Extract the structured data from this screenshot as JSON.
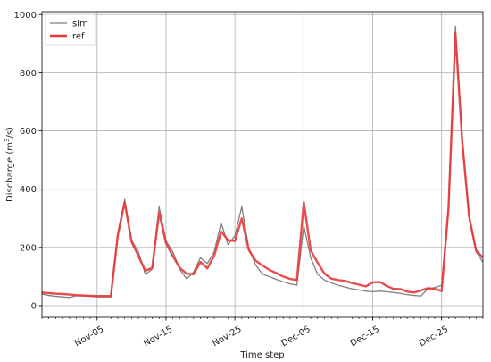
{
  "chart_data": {
    "type": "line",
    "xlabel": "Time step",
    "ylabel": "Discharge (m³/s)",
    "ylabel_main": "Discharge (m",
    "ylabel_sup": "3",
    "ylabel_end": "/s)",
    "ylim": [
      -40,
      1010
    ],
    "xlim": [
      "2023-10-28",
      "2023-12-31"
    ],
    "yticks": [
      0,
      200,
      400,
      600,
      800,
      1000
    ],
    "xticks": [
      "2023-11-05",
      "2023-11-15",
      "2023-11-25",
      "2023-12-05",
      "2023-12-15",
      "2023-12-25"
    ],
    "xtick_labels": [
      "Nov-05",
      "Nov-15",
      "Nov-25",
      "Dec-05",
      "Dec-15",
      "Dec-25"
    ],
    "grid": true,
    "legend_position": "top-left",
    "series": [
      {
        "name": "sim",
        "color": "#808080",
        "points": [
          [
            "2023-10-28",
            40
          ],
          [
            "2023-10-29",
            35
          ],
          [
            "2023-10-30",
            32
          ],
          [
            "2023-10-31",
            30
          ],
          [
            "2023-11-01",
            28
          ],
          [
            "2023-11-02",
            34
          ],
          [
            "2023-11-03",
            33
          ],
          [
            "2023-11-04",
            32
          ],
          [
            "2023-11-05",
            30
          ],
          [
            "2023-11-06",
            30
          ],
          [
            "2023-11-07",
            30
          ],
          [
            "2023-11-08",
            250
          ],
          [
            "2023-11-09",
            365
          ],
          [
            "2023-11-10",
            225
          ],
          [
            "2023-11-11",
            185
          ],
          [
            "2023-11-12",
            108
          ],
          [
            "2023-11-13",
            125
          ],
          [
            "2023-11-14",
            340
          ],
          [
            "2023-11-15",
            222
          ],
          [
            "2023-11-16",
            185
          ],
          [
            "2023-11-17",
            125
          ],
          [
            "2023-11-18",
            92
          ],
          [
            "2023-11-19",
            115
          ],
          [
            "2023-11-20",
            165
          ],
          [
            "2023-11-21",
            145
          ],
          [
            "2023-11-22",
            185
          ],
          [
            "2023-11-23",
            285
          ],
          [
            "2023-11-24",
            210
          ],
          [
            "2023-11-25",
            240
          ],
          [
            "2023-11-26",
            340
          ],
          [
            "2023-11-27",
            200
          ],
          [
            "2023-11-28",
            140
          ],
          [
            "2023-11-29",
            108
          ],
          [
            "2023-11-30",
            100
          ],
          [
            "2023-12-01",
            90
          ],
          [
            "2023-12-02",
            82
          ],
          [
            "2023-12-03",
            75
          ],
          [
            "2023-12-04",
            70
          ],
          [
            "2023-12-05",
            275
          ],
          [
            "2023-12-06",
            165
          ],
          [
            "2023-12-07",
            108
          ],
          [
            "2023-12-08",
            88
          ],
          [
            "2023-12-09",
            78
          ],
          [
            "2023-12-10",
            70
          ],
          [
            "2023-12-11",
            64
          ],
          [
            "2023-12-12",
            58
          ],
          [
            "2023-12-13",
            54
          ],
          [
            "2023-12-14",
            50
          ],
          [
            "2023-12-15",
            48
          ],
          [
            "2023-12-16",
            50
          ],
          [
            "2023-12-17",
            48
          ],
          [
            "2023-12-18",
            45
          ],
          [
            "2023-12-19",
            42
          ],
          [
            "2023-12-20",
            38
          ],
          [
            "2023-12-21",
            35
          ],
          [
            "2023-12-22",
            33
          ],
          [
            "2023-12-23",
            58
          ],
          [
            "2023-12-24",
            62
          ],
          [
            "2023-12-25",
            70
          ],
          [
            "2023-12-26",
            340
          ],
          [
            "2023-12-27",
            960
          ],
          [
            "2023-12-28",
            580
          ],
          [
            "2023-12-29",
            300
          ],
          [
            "2023-12-30",
            185
          ],
          [
            "2023-12-31",
            150
          ]
        ]
      },
      {
        "name": "ref",
        "color": "#e8393a",
        "points": [
          [
            "2023-10-28",
            45
          ],
          [
            "2023-10-29",
            43
          ],
          [
            "2023-10-30",
            41
          ],
          [
            "2023-10-31",
            40
          ],
          [
            "2023-11-01",
            38
          ],
          [
            "2023-11-02",
            36
          ],
          [
            "2023-11-03",
            35
          ],
          [
            "2023-11-04",
            34
          ],
          [
            "2023-11-05",
            33
          ],
          [
            "2023-11-06",
            33
          ],
          [
            "2023-11-07",
            33
          ],
          [
            "2023-11-08",
            240
          ],
          [
            "2023-11-09",
            355
          ],
          [
            "2023-11-10",
            220
          ],
          [
            "2023-11-11",
            170
          ],
          [
            "2023-11-12",
            120
          ],
          [
            "2023-11-13",
            130
          ],
          [
            "2023-11-14",
            320
          ],
          [
            "2023-11-15",
            215
          ],
          [
            "2023-11-16",
            170
          ],
          [
            "2023-11-17",
            130
          ],
          [
            "2023-11-18",
            110
          ],
          [
            "2023-11-19",
            108
          ],
          [
            "2023-11-20",
            150
          ],
          [
            "2023-11-21",
            128
          ],
          [
            "2023-11-22",
            172
          ],
          [
            "2023-11-23",
            255
          ],
          [
            "2023-11-24",
            225
          ],
          [
            "2023-11-25",
            222
          ],
          [
            "2023-11-26",
            300
          ],
          [
            "2023-11-27",
            192
          ],
          [
            "2023-11-28",
            155
          ],
          [
            "2023-11-29",
            138
          ],
          [
            "2023-11-30",
            123
          ],
          [
            "2023-12-01",
            112
          ],
          [
            "2023-12-02",
            100
          ],
          [
            "2023-12-03",
            92
          ],
          [
            "2023-12-04",
            88
          ],
          [
            "2023-12-05",
            355
          ],
          [
            "2023-12-06",
            190
          ],
          [
            "2023-12-07",
            148
          ],
          [
            "2023-12-08",
            110
          ],
          [
            "2023-12-09",
            93
          ],
          [
            "2023-12-10",
            88
          ],
          [
            "2023-12-11",
            85
          ],
          [
            "2023-12-12",
            78
          ],
          [
            "2023-12-13",
            72
          ],
          [
            "2023-12-14",
            66
          ],
          [
            "2023-12-15",
            80
          ],
          [
            "2023-12-16",
            82
          ],
          [
            "2023-12-17",
            68
          ],
          [
            "2023-12-18",
            58
          ],
          [
            "2023-12-19",
            57
          ],
          [
            "2023-12-20",
            48
          ],
          [
            "2023-12-21",
            45
          ],
          [
            "2023-12-22",
            52
          ],
          [
            "2023-12-23",
            60
          ],
          [
            "2023-12-24",
            58
          ],
          [
            "2023-12-25",
            50
          ],
          [
            "2023-12-26",
            335
          ],
          [
            "2023-12-27",
            935
          ],
          [
            "2023-12-28",
            560
          ],
          [
            "2023-12-29",
            305
          ],
          [
            "2023-12-30",
            190
          ],
          [
            "2023-12-31",
            165
          ]
        ]
      }
    ]
  }
}
